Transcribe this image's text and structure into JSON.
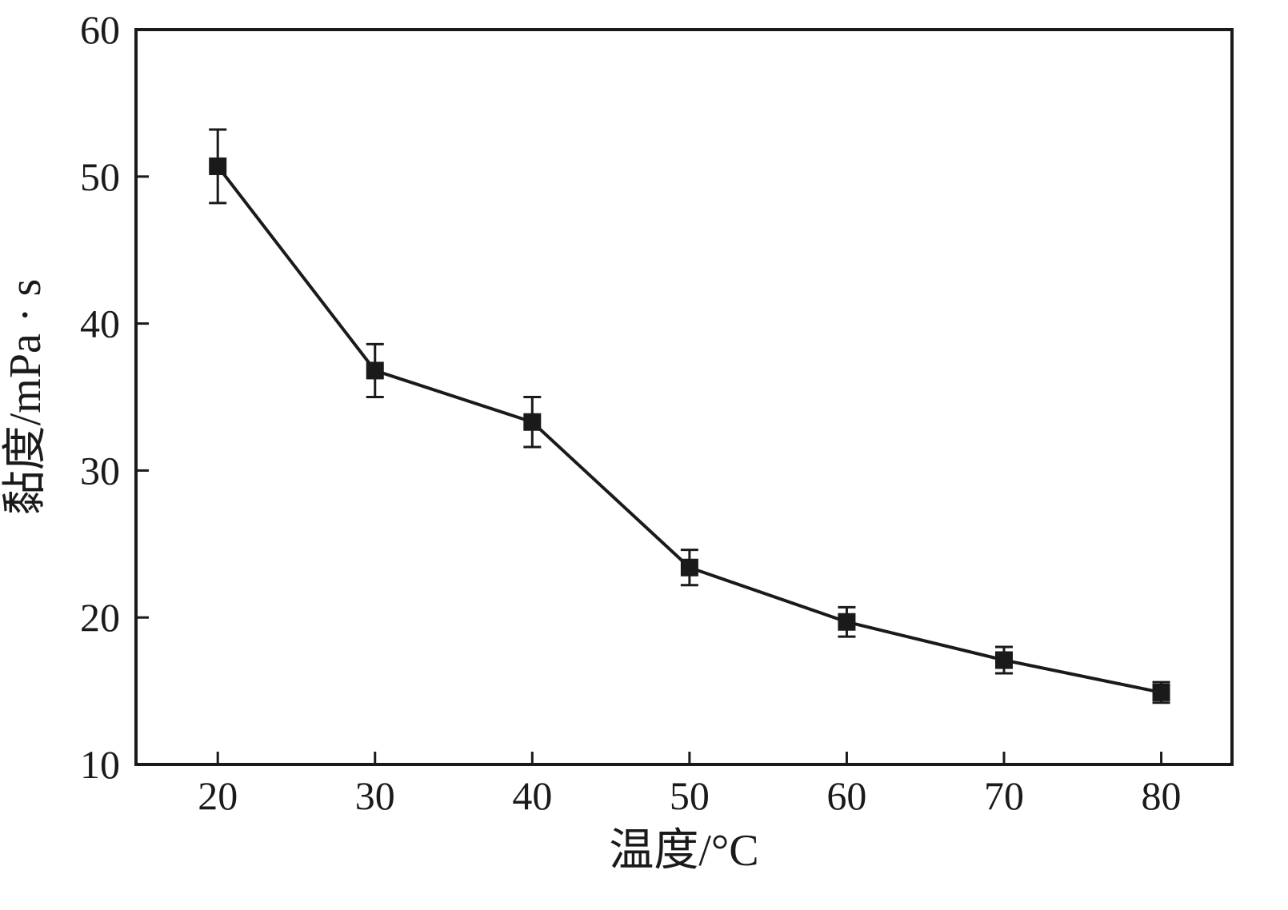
{
  "chart_data": {
    "type": "line",
    "title": "",
    "xlabel": "温度/°C",
    "ylabel": "黏度/mPa · s",
    "x": [
      20,
      30,
      40,
      50,
      60,
      70,
      80
    ],
    "series": [
      {
        "name": "viscosity",
        "values": [
          50.7,
          36.8,
          33.3,
          23.4,
          19.7,
          17.1,
          14.9
        ],
        "errors": [
          2.5,
          1.8,
          1.7,
          1.2,
          1.0,
          0.9,
          0.7
        ],
        "marker": "square",
        "color": "#1a1a1a"
      }
    ],
    "xlim": [
      14.8,
      84.5
    ],
    "ylim": [
      10,
      60
    ],
    "x_ticks": [
      20,
      30,
      40,
      50,
      60,
      70,
      80
    ],
    "y_ticks": [
      10,
      20,
      30,
      40,
      50,
      60
    ],
    "grid": false,
    "legend": "none"
  }
}
